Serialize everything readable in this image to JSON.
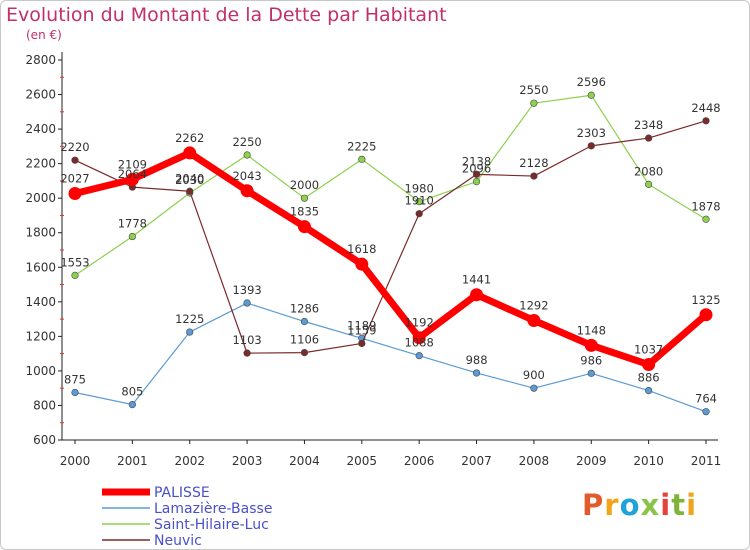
{
  "header": {
    "title": "Evolution du Montant de la Dette par Habitant",
    "unit": "(en €)"
  },
  "logo": {
    "letters": [
      "P",
      "r",
      "o",
      "x",
      "i",
      "t",
      "i"
    ],
    "colors": [
      "#e35a2b",
      "#f2a51b",
      "#1fa3d8",
      "#8bc34a",
      "#e8413b",
      "#7fb43a",
      "#f2a51b"
    ]
  },
  "chart_data": {
    "type": "line",
    "title": "Evolution du Montant de la Dette par Habitant",
    "ylabel": "(en €)",
    "xlabel": "",
    "x": [
      "2000",
      "2001",
      "2002",
      "2003",
      "2004",
      "2005",
      "2006",
      "2007",
      "2008",
      "2009",
      "2010",
      "2011"
    ],
    "ylim": [
      600,
      2800
    ],
    "yticks": [
      600,
      800,
      1000,
      1200,
      1400,
      1600,
      1800,
      2000,
      2200,
      2400,
      2600,
      2800
    ],
    "grid": false,
    "legend": "bottom-left",
    "series": [
      {
        "name": "PALISSE",
        "color": "#ff0000",
        "values": [
          2027,
          2109,
          2262,
          2043,
          1835,
          1618,
          1192,
          1441,
          1292,
          1148,
          1037,
          1325
        ]
      },
      {
        "name": "Lamazière-Basse",
        "color": "#5b9bd5",
        "values": [
          875,
          805,
          1225,
          1393,
          1286,
          1189,
          1088,
          988,
          900,
          986,
          886,
          764
        ]
      },
      {
        "name": "Saint-Hilaire-Luc",
        "color": "#8dd04d",
        "values": [
          1553,
          1778,
          2030,
          2250,
          2000,
          2225,
          1980,
          2096,
          2550,
          2596,
          2080,
          1878
        ]
      },
      {
        "name": "Neuvic",
        "color": "#7b2a2a",
        "values": [
          2220,
          2064,
          2040,
          1103,
          1106,
          1159,
          1910,
          2138,
          2128,
          2303,
          2348,
          2448
        ]
      }
    ]
  }
}
